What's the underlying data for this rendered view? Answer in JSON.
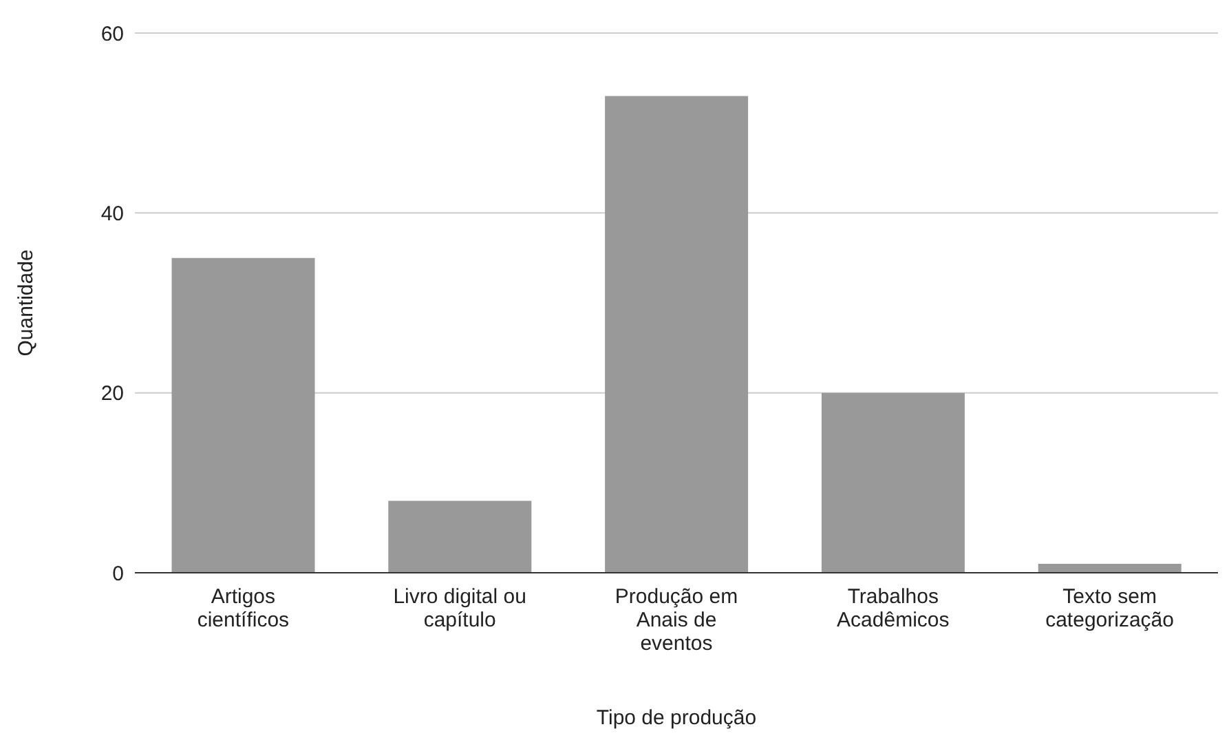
{
  "chart_data": {
    "type": "bar",
    "xlabel": "Tipo de produção",
    "ylabel": "Quantidade",
    "categories": [
      "Artigos científicos",
      "Livro digital ou capítulo",
      "Produção em Anais de eventos",
      "Trabalhos Acadêmicos",
      "Texto sem categorização"
    ],
    "values": [
      35,
      8,
      53,
      20,
      1
    ],
    "color": "#999999",
    "ylim": [
      0,
      60
    ],
    "yticks": [
      0,
      20,
      40,
      60
    ],
    "grid": "y",
    "legend": false
  }
}
